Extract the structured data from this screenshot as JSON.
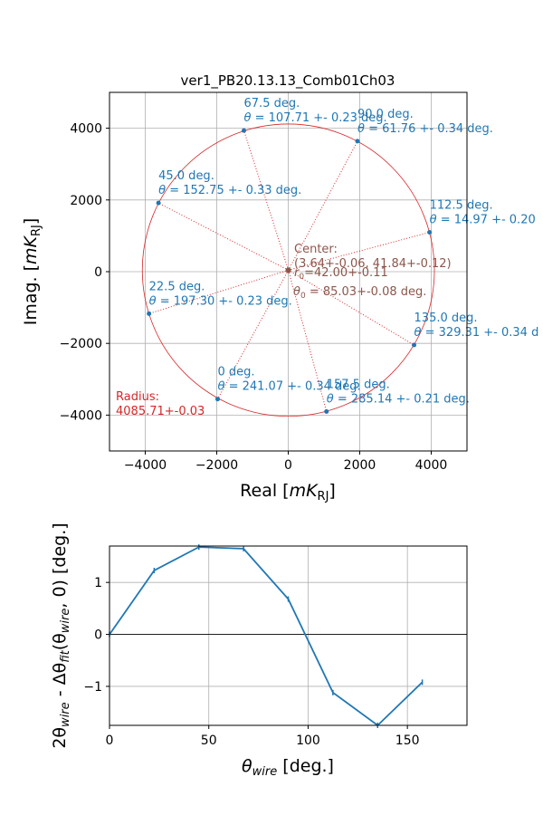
{
  "chart_data": [
    {
      "type": "scatter",
      "title": "ver1_PB20.13.13_Comb01Ch03",
      "xlabel": "Real",
      "xlabel_unit": "mK",
      "xlabel_unit_sub": "RJ",
      "ylabel": "Imag.",
      "ylabel_unit": "mK",
      "ylabel_unit_sub": "RJ",
      "xlim": [
        -5000,
        5000
      ],
      "ylim": [
        -5000,
        5000
      ],
      "xticks": [
        -4000,
        -2000,
        0,
        2000,
        4000
      ],
      "yticks": [
        -4000,
        -2000,
        0,
        2000,
        4000
      ],
      "xtick_labels": [
        "−4000",
        "−2000",
        "0",
        "2000",
        "4000"
      ],
      "ytick_labels": [
        "−4000",
        "−2000",
        "0",
        "2000",
        "4000"
      ],
      "grid": true,
      "colors": {
        "points": "#1f77b4",
        "circle": "#d62728",
        "center": "#8c564b",
        "lines": "#d62728"
      },
      "circle": {
        "center": [
          3.64,
          41.84
        ],
        "radius": 4085.71
      },
      "center_label": "Center:",
      "center_value": "(3.64+-0.06, 41.84+-0.12)",
      "r0_label": "r",
      "r0_sub": "0",
      "r0_value": "=42.00+-0.11",
      "theta0_label": "θ",
      "theta0_sub": "0",
      "theta0_value": " = 85.03+-0.08 deg.",
      "radius_label": "Radius:",
      "radius_value": "4085.71+-0.03",
      "points": [
        {
          "angle_label": "0 deg.",
          "theta_sym": "θ",
          "theta_text": " = 241.07 +- 0.34 deg.",
          "x": -1975,
          "y": -3553
        },
        {
          "angle_label": "22.5 deg.",
          "theta_sym": "θ",
          "theta_text": " = 197.30 +- 0.23 deg.",
          "x": -3895,
          "y": -1170
        },
        {
          "angle_label": "45.0 deg.",
          "theta_sym": "θ",
          "theta_text": " = 152.75 +- 0.33 deg.",
          "x": -3630,
          "y": 1915
        },
        {
          "angle_label": "67.5 deg.",
          "theta_sym": "θ",
          "theta_text": " = 107.71 +- 0.23 deg.",
          "x": -1240,
          "y": 3935
        },
        {
          "angle_label": "90.0 deg.",
          "theta_sym": "θ",
          "theta_text": " = 61.76 +- 0.34 deg.",
          "x": 1937,
          "y": 3639
        },
        {
          "angle_label": "112.5 deg.",
          "theta_sym": "θ",
          "theta_text": " = 14.97 +- 0.20",
          "x": 3952,
          "y": 1098
        },
        {
          "angle_label": "135.0 deg.",
          "theta_sym": "θ",
          "theta_text": " = 329.31 +- 0.34 d",
          "x": 3520,
          "y": -2045
        },
        {
          "angle_label": "157.5 deg.",
          "theta_sym": "θ",
          "theta_text": " = 285.14 +- 0.21 deg.",
          "x": 1070,
          "y": -3900
        }
      ]
    },
    {
      "type": "line",
      "xlabel_sym": "θ",
      "xlabel_sub": "wire",
      "xlabel_tail": " [deg.]",
      "ylabel_a": "2θ",
      "ylabel_a_sub": "wire",
      "ylabel_b": " - Δθ",
      "ylabel_b_sub": "fit",
      "ylabel_c": "(θ",
      "ylabel_c_sub": "wire",
      "ylabel_d": ", 0) [deg.]",
      "xlim": [
        0,
        180
      ],
      "ylim": [
        -1.75,
        1.7
      ],
      "xticks": [
        0,
        50,
        100,
        150
      ],
      "yticks": [
        -1,
        0,
        1
      ],
      "xtick_labels": [
        "0",
        "50",
        "100",
        "150"
      ],
      "ytick_labels": [
        "−1",
        "0",
        "1"
      ],
      "grid": true,
      "color": "#1f77b4",
      "x": [
        0,
        22.5,
        45,
        67.5,
        90,
        112.5,
        135,
        157.5
      ],
      "y": [
        0.0,
        1.23,
        1.68,
        1.65,
        0.68,
        -1.12,
        -1.75,
        -0.92
      ]
    }
  ]
}
